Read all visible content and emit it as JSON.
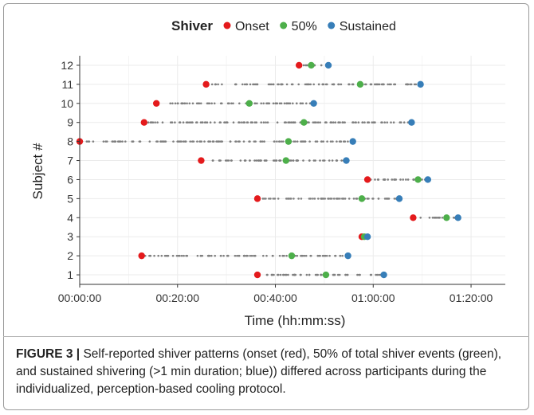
{
  "chart_data": {
    "type": "scatter",
    "title": "",
    "xlabel": "Time (hh:mm:ss)",
    "ylabel": "Subject #",
    "xlim": [
      "00:00:00",
      "01:27:00"
    ],
    "ylim": [
      0.5,
      12.5
    ],
    "x_ticks": [
      "00:00:00",
      "00:20:00",
      "00:40:00",
      "01:00:00",
      "01:20:00"
    ],
    "y_ticks": [
      1,
      2,
      3,
      4,
      5,
      6,
      7,
      8,
      9,
      10,
      11,
      12
    ],
    "grid": true,
    "legend": {
      "title": "Shiver",
      "placement": "top",
      "entries": [
        {
          "label": "Onset",
          "color": "#e41a1c"
        },
        {
          "label": "50%",
          "color": "#4daf4a"
        },
        {
          "label": "Sustained",
          "color": "#377eb8"
        }
      ]
    },
    "event_color": "#7f7f7f",
    "series": [
      {
        "name": "Onset",
        "color": "#e41a1c",
        "points": [
          {
            "subject": 1,
            "time": "00:36:20"
          },
          {
            "subject": 2,
            "time": "00:12:40"
          },
          {
            "subject": 3,
            "time": "00:57:40"
          },
          {
            "subject": 4,
            "time": "01:08:10"
          },
          {
            "subject": 5,
            "time": "00:36:20"
          },
          {
            "subject": 6,
            "time": "00:58:50"
          },
          {
            "subject": 7,
            "time": "00:24:50"
          },
          {
            "subject": 8,
            "time": "00:00:00"
          },
          {
            "subject": 9,
            "time": "00:13:10"
          },
          {
            "subject": 10,
            "time": "00:15:40"
          },
          {
            "subject": 11,
            "time": "00:25:50"
          },
          {
            "subject": 12,
            "time": "00:44:50"
          }
        ]
      },
      {
        "name": "50%",
        "color": "#4daf4a",
        "points": [
          {
            "subject": 1,
            "time": "00:50:20"
          },
          {
            "subject": 2,
            "time": "00:43:20"
          },
          {
            "subject": 3,
            "time": "00:58:10"
          },
          {
            "subject": 4,
            "time": "01:15:00"
          },
          {
            "subject": 5,
            "time": "00:57:40"
          },
          {
            "subject": 6,
            "time": "01:09:10"
          },
          {
            "subject": 7,
            "time": "00:42:10"
          },
          {
            "subject": 8,
            "time": "00:42:40"
          },
          {
            "subject": 9,
            "time": "00:45:50"
          },
          {
            "subject": 10,
            "time": "00:34:40"
          },
          {
            "subject": 11,
            "time": "00:57:20"
          },
          {
            "subject": 12,
            "time": "00:47:20"
          }
        ]
      },
      {
        "name": "Sustained",
        "color": "#377eb8",
        "points": [
          {
            "subject": 1,
            "time": "01:02:10"
          },
          {
            "subject": 2,
            "time": "00:54:50"
          },
          {
            "subject": 3,
            "time": "00:58:50"
          },
          {
            "subject": 4,
            "time": "01:17:20"
          },
          {
            "subject": 5,
            "time": "01:05:20"
          },
          {
            "subject": 6,
            "time": "01:11:10"
          },
          {
            "subject": 7,
            "time": "00:54:30"
          },
          {
            "subject": 8,
            "time": "00:55:50"
          },
          {
            "subject": 9,
            "time": "01:07:50"
          },
          {
            "subject": 10,
            "time": "00:47:50"
          },
          {
            "subject": 11,
            "time": "01:09:40"
          },
          {
            "subject": 12,
            "time": "00:50:50"
          }
        ]
      }
    ]
  },
  "caption": {
    "label": "FIGURE 3 |",
    "text": " Self-reported shiver patterns (onset (red), 50% of total shiver events (green), and sustained shivering (>1 min duration; blue)) differed across participants during the individualized, perception-based cooling protocol."
  }
}
